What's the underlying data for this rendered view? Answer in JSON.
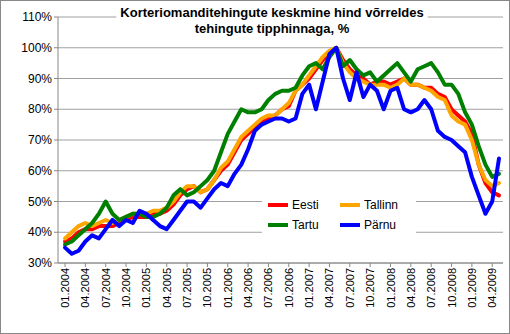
{
  "chart_data": {
    "type": "line",
    "title": "Korteriomanditehingute keskmine hind võrreldes tehingute tipphinnaga, %",
    "categories": [
      "01.2004",
      null,
      null,
      "04.2004",
      null,
      null,
      "07.2004",
      null,
      null,
      "10.2004",
      null,
      null,
      "01.2005",
      null,
      null,
      "04.2005",
      null,
      null,
      "07.2005",
      null,
      null,
      "10.2005",
      null,
      null,
      "01.2006",
      null,
      null,
      "04.2006",
      null,
      null,
      "07.2006",
      null,
      null,
      "10.2006",
      null,
      null,
      "01.2007",
      null,
      null,
      "04.2007",
      null,
      null,
      "07.2007",
      null,
      null,
      "10.2007",
      null,
      null,
      "01.2008",
      null,
      null,
      "04.2008",
      null,
      null,
      "07.2008",
      null,
      null,
      "10.2008",
      null,
      null,
      "01.2009",
      null,
      null,
      "04.2009",
      null
    ],
    "series": [
      {
        "name": "Eesti",
        "color": "#ff0000",
        "values": [
          37,
          38,
          40,
          41,
          41,
          42,
          42,
          42,
          43,
          44,
          45,
          45,
          45,
          46,
          46,
          47,
          49,
          52,
          54,
          55,
          53,
          54,
          57,
          60,
          62,
          66,
          70,
          72,
          74,
          76,
          77,
          78,
          80,
          81,
          86,
          88,
          90,
          93,
          96,
          98,
          100,
          96,
          93,
          91,
          90,
          88,
          89,
          89,
          88,
          89,
          90,
          88,
          88,
          87,
          87,
          85,
          84,
          80,
          78,
          76,
          72,
          62,
          56,
          53,
          52
        ]
      },
      {
        "name": "Tallinn",
        "color": "#ffa500",
        "values": [
          38,
          40,
          42,
          43,
          42,
          43,
          44,
          43,
          44,
          45,
          46,
          46,
          46,
          47,
          47,
          48,
          50,
          53,
          55,
          55,
          53,
          54,
          57,
          61,
          63,
          67,
          71,
          73,
          75,
          77,
          78,
          78,
          80,
          82,
          86,
          88,
          91,
          94,
          97,
          99,
          100,
          95,
          92,
          90,
          89,
          88,
          88,
          88,
          87,
          88,
          90,
          88,
          88,
          87,
          86,
          84,
          83,
          78,
          76,
          75,
          70,
          62,
          57,
          55,
          56
        ]
      },
      {
        "name": "Tartu",
        "color": "#008000",
        "values": [
          36,
          37,
          39,
          41,
          43,
          46,
          50,
          46,
          44,
          45,
          46,
          46,
          45,
          45,
          46,
          48,
          52,
          54,
          52,
          53,
          55,
          57,
          60,
          66,
          72,
          76,
          80,
          79,
          79,
          80,
          83,
          85,
          86,
          86,
          87,
          91,
          94,
          95,
          93,
          97,
          100,
          94,
          96,
          93,
          91,
          92,
          89,
          91,
          93,
          95,
          92,
          89,
          93,
          94,
          95,
          92,
          88,
          88,
          85,
          79,
          75,
          68,
          62,
          58,
          59
        ]
      },
      {
        "name": "Pärnu",
        "color": "#0000ff",
        "values": [
          35,
          33,
          34,
          37,
          39,
          38,
          41,
          44,
          42,
          44,
          43,
          47,
          46,
          44,
          42,
          41,
          44,
          47,
          50,
          50,
          48,
          51,
          54,
          56,
          55,
          59,
          62,
          67,
          73,
          75,
          76,
          77,
          77,
          76,
          77,
          85,
          88,
          80,
          89,
          98,
          100,
          90,
          83,
          92,
          84,
          88,
          86,
          80,
          86,
          87,
          80,
          79,
          80,
          83,
          80,
          73,
          71,
          70,
          68,
          66,
          58,
          52,
          46,
          50,
          64
        ]
      }
    ],
    "ylim": [
      30,
      110
    ],
    "yticks": [
      {
        "value": 30,
        "label": "30%"
      },
      {
        "value": 40,
        "label": "40%"
      },
      {
        "value": 50,
        "label": "50%"
      },
      {
        "value": 60,
        "label": "60%"
      },
      {
        "value": 70,
        "label": "70%"
      },
      {
        "value": 80,
        "label": "80%"
      },
      {
        "value": 90,
        "label": "90%"
      },
      {
        "value": 100,
        "label": "100%"
      },
      {
        "value": 110,
        "label": "110%"
      }
    ],
    "grid": true,
    "legend": "lower center"
  }
}
